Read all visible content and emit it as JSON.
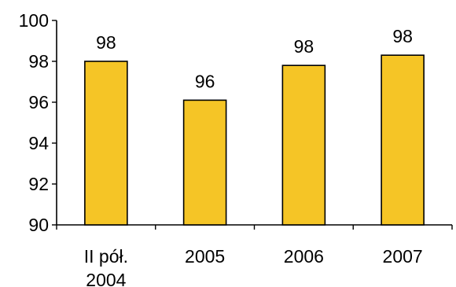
{
  "chart_data": {
    "type": "bar",
    "categories": [
      [
        "II pół.",
        "2004"
      ],
      [
        "2005"
      ],
      [
        "2006"
      ],
      [
        "2007"
      ]
    ],
    "values": [
      98.0,
      96.1,
      97.8,
      98.3
    ],
    "data_labels": [
      "98",
      "96",
      "98",
      "98"
    ],
    "yticks": [
      "90",
      "92",
      "94",
      "96",
      "98",
      "100"
    ],
    "ylim": [
      90,
      100
    ],
    "ytick_values": [
      90,
      92,
      94,
      96,
      98,
      100
    ],
    "grid": false,
    "legend": "none",
    "title": "",
    "xlabel": "",
    "ylabel": "",
    "colors": {
      "bar_fill": "#F5C526",
      "bar_stroke": "#000000",
      "axis": "#000000",
      "text": "#000000"
    }
  }
}
